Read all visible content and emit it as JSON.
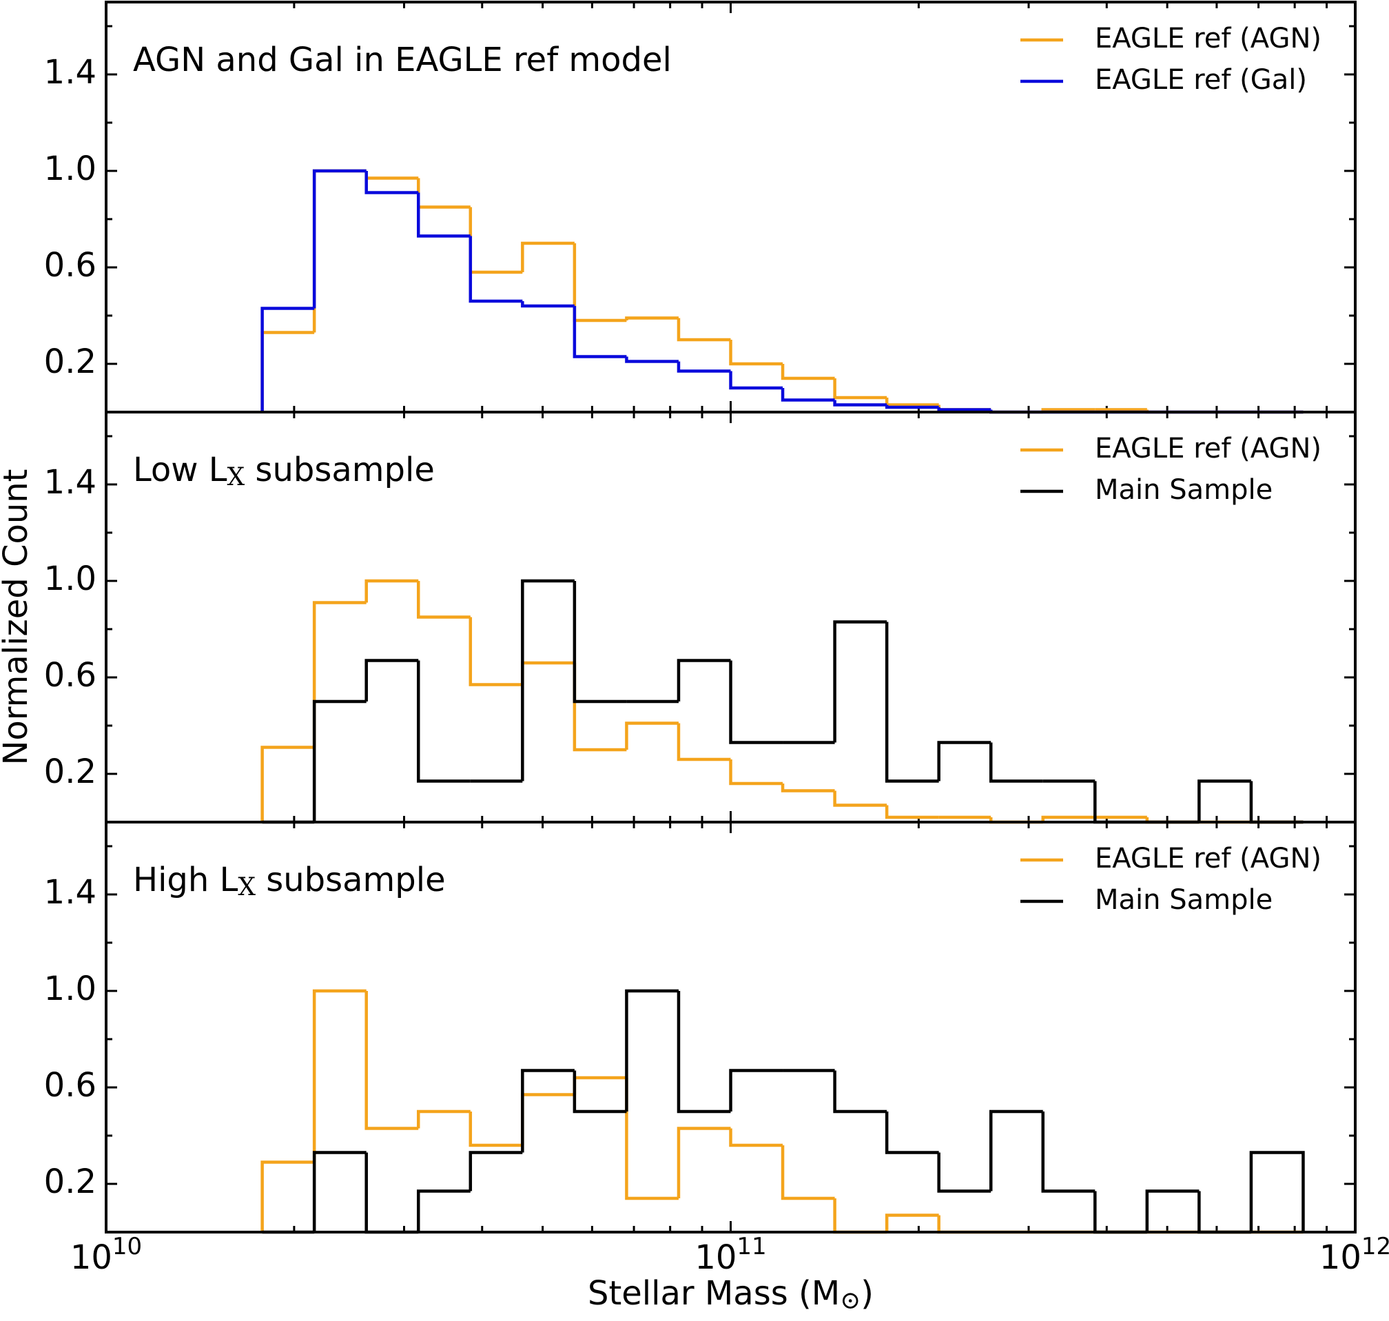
{
  "chart_data": [
    {
      "type": "histogram",
      "title": [
        "AGN and Gal in EAGLE ref model"
      ],
      "bins": [
        17783000000.0,
        21544000000.0,
        26102000000.0,
        31623000000.0,
        38312000000.0,
        46416000000.0,
        56234000000.0,
        68129000000.0,
        82540000000.0,
        100000000000.0,
        121150000000.0,
        146780000000.0,
        177830000000.0,
        215440000000.0,
        261020000000.0,
        316230000000.0,
        383120000000.0,
        464160000000.0,
        562340000000.0,
        681290000000.0,
        825400000000.0
      ],
      "series": [
        {
          "name": "EAGLE ref (AGN)",
          "color": "#f4a41c",
          "values": [
            0.33,
            1.0,
            0.97,
            0.85,
            0.58,
            0.7,
            0.38,
            0.39,
            0.3,
            0.2,
            0.14,
            0.06,
            0.03,
            0.01,
            0,
            0.01,
            0.01,
            0,
            0,
            0
          ]
        },
        {
          "name": "EAGLE ref (Gal)",
          "color": "#0a0adc",
          "values": [
            0.43,
            1.0,
            0.91,
            0.73,
            0.46,
            0.44,
            0.23,
            0.21,
            0.17,
            0.1,
            0.05,
            0.03,
            0.02,
            0.01,
            0,
            0,
            0,
            0,
            0,
            0
          ]
        }
      ],
      "xlim": [
        10000000000.0,
        1000000000000.0
      ],
      "xscale": "log",
      "ylim": [
        0,
        1.7
      ],
      "yticks": [
        0.2,
        0.6,
        {
          "value": 1,
          "label": "1.0"
        },
        1.4
      ],
      "yminor": [
        0.4,
        0.8,
        1.2,
        1.6
      ],
      "legend": "upper right"
    },
    {
      "type": "histogram",
      "title": [
        "Low L",
        "X",
        " subsample"
      ],
      "ylabel": "Normalized Count",
      "bins": [
        17783000000.0,
        21544000000.0,
        26102000000.0,
        31623000000.0,
        38312000000.0,
        46416000000.0,
        56234000000.0,
        68129000000.0,
        82540000000.0,
        100000000000.0,
        121150000000.0,
        146780000000.0,
        177830000000.0,
        215440000000.0,
        261020000000.0,
        316230000000.0,
        383120000000.0,
        464160000000.0,
        562340000000.0,
        681290000000.0,
        825400000000.0
      ],
      "series": [
        {
          "name": "EAGLE ref (AGN)",
          "color": "#f4a41c",
          "values": [
            0.31,
            0.91,
            1.0,
            0.85,
            0.57,
            0.66,
            0.3,
            0.41,
            0.26,
            0.16,
            0.13,
            0.07,
            0.02,
            0.02,
            0,
            0.02,
            0.02,
            0,
            0,
            0
          ]
        },
        {
          "name": "Main Sample",
          "color": "#000000",
          "values": [
            0,
            0.5,
            0.67,
            0.17,
            0.17,
            1.0,
            0.5,
            0.5,
            0.67,
            0.33,
            0.33,
            0.83,
            0.17,
            0.33,
            0.17,
            0.17,
            0,
            0,
            0.17,
            0
          ]
        }
      ],
      "xlim": [
        10000000000.0,
        1000000000000.0
      ],
      "xscale": "log",
      "ylim": [
        0,
        1.7
      ],
      "yticks": [
        0.2,
        0.6,
        {
          "value": 1,
          "label": "1.0"
        },
        1.4
      ],
      "yminor": [
        0.4,
        0.8,
        1.2,
        1.6
      ],
      "legend": "upper right"
    },
    {
      "type": "histogram",
      "title": [
        "High L",
        "X",
        " subsample"
      ],
      "xlabel": [
        "Stellar Mass (M",
        "⊙",
        ")"
      ],
      "bins": [
        17783000000.0,
        21544000000.0,
        26102000000.0,
        31623000000.0,
        38312000000.0,
        46416000000.0,
        56234000000.0,
        68129000000.0,
        82540000000.0,
        100000000000.0,
        121150000000.0,
        146780000000.0,
        177830000000.0,
        215440000000.0,
        261020000000.0,
        316230000000.0,
        383120000000.0,
        464160000000.0,
        562340000000.0,
        681290000000.0,
        825400000000.0
      ],
      "series": [
        {
          "name": "EAGLE ref (AGN)",
          "color": "#f4a41c",
          "values": [
            0.29,
            1.0,
            0.43,
            0.5,
            0.36,
            0.57,
            0.64,
            0.14,
            0.43,
            0.36,
            0.14,
            0,
            0.07,
            0,
            0,
            0,
            0,
            0,
            0,
            0
          ]
        },
        {
          "name": "Main Sample",
          "color": "#000000",
          "values": [
            0,
            0.33,
            0,
            0.17,
            0.33,
            0.67,
            0.5,
            1.0,
            0.5,
            0.67,
            0.67,
            0.5,
            0.33,
            0.17,
            0.5,
            0.17,
            0,
            0.17,
            0,
            0.33
          ]
        }
      ],
      "xlim": [
        10000000000.0,
        1000000000000.0
      ],
      "xscale": "log",
      "xticks": [
        {
          "value": 10000000000.0,
          "label": "10",
          "exponent": "10"
        },
        {
          "value": 100000000000.0,
          "label": "10",
          "exponent": "11"
        },
        {
          "value": 1000000000000.0,
          "label": "10",
          "exponent": "12"
        }
      ],
      "xminor": [
        20000000000.0,
        30000000000.0,
        40000000000.0,
        50000000000.0,
        60000000000.0,
        70000000000.0,
        80000000000.0,
        90000000000.0,
        200000000000.0,
        300000000000.0,
        400000000000.0,
        500000000000.0,
        600000000000.0,
        700000000000.0,
        800000000000.0,
        900000000000.0
      ],
      "ylim": [
        0,
        1.7
      ],
      "yticks": [
        0.2,
        0.6,
        {
          "value": 1,
          "label": "1.0"
        },
        1.4
      ],
      "yminor": [
        0.4,
        0.8,
        1.2,
        1.6
      ],
      "legend": "upper right"
    }
  ]
}
